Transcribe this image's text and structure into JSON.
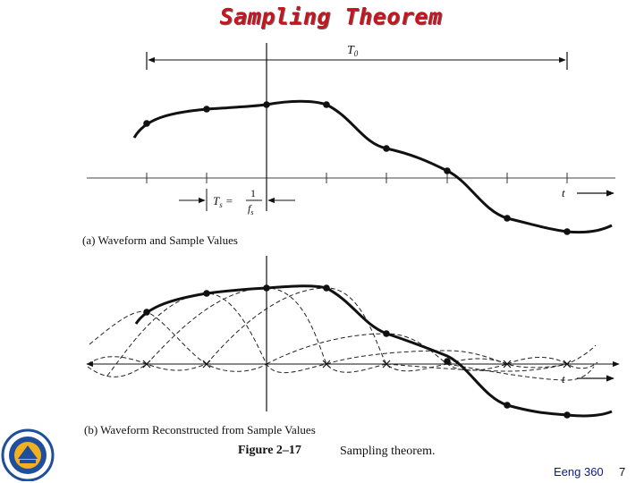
{
  "title": "Sampling Theorem",
  "diagram": {
    "period_label": "T",
    "period_sub": "0",
    "ts_label": "T",
    "ts_sub": "s",
    "ts_eq": "=",
    "ts_num": "1",
    "ts_den": "f",
    "ts_den_sub": "s",
    "time_label_a": "t",
    "time_label_b": "t",
    "caption_a": "(a) Waveform and Sample Values",
    "caption_b": "(b) Waveform Reconstructed from Sample Values",
    "figure_label": "Figure 2–17",
    "figure_text": "Sampling theorem."
  },
  "footer": {
    "course": "Eeng 360",
    "page": "7"
  },
  "colors": {
    "title": "#c8141e",
    "course": "#0a1a8a",
    "logo_blue": "#1f4e9c",
    "logo_gold": "#f2b01e"
  }
}
